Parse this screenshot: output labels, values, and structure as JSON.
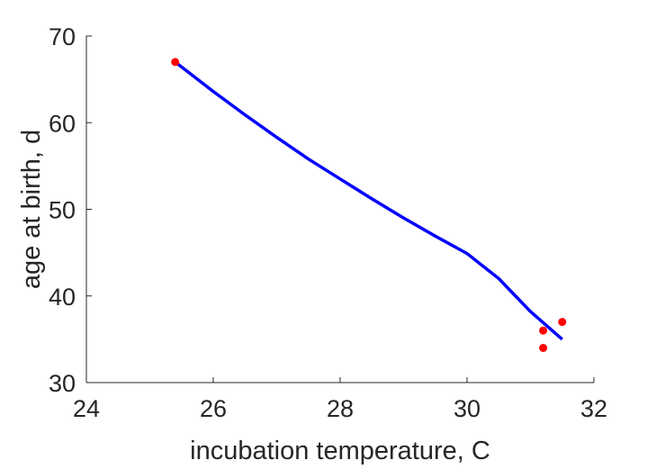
{
  "chart_data": {
    "type": "scatter",
    "title": "",
    "xlabel": "incubation temperature, C",
    "ylabel": "age at birth, d",
    "xlim": [
      24,
      32
    ],
    "ylim": [
      30,
      70
    ],
    "xticks": [
      "24",
      "26",
      "28",
      "30",
      "32"
    ],
    "yticks": [
      "30",
      "40",
      "50",
      "60",
      "70"
    ],
    "grid": false,
    "legend": "none",
    "series": [
      {
        "kind": "points",
        "color": "#ff0000",
        "x": [
          25.4,
          31.2,
          31.2,
          31.5
        ],
        "y": [
          67,
          36,
          34,
          37
        ]
      },
      {
        "kind": "line",
        "color": "#0000ff",
        "x": [
          25.4,
          26.0,
          26.5,
          27.0,
          27.5,
          28.0,
          28.5,
          29.0,
          29.5,
          30.0,
          30.5,
          31.0,
          31.5
        ],
        "y": [
          67.0,
          63.6,
          60.9,
          58.3,
          55.8,
          53.5,
          51.2,
          49.0,
          46.9,
          44.9,
          42.0,
          38.2,
          35.0
        ]
      }
    ]
  }
}
